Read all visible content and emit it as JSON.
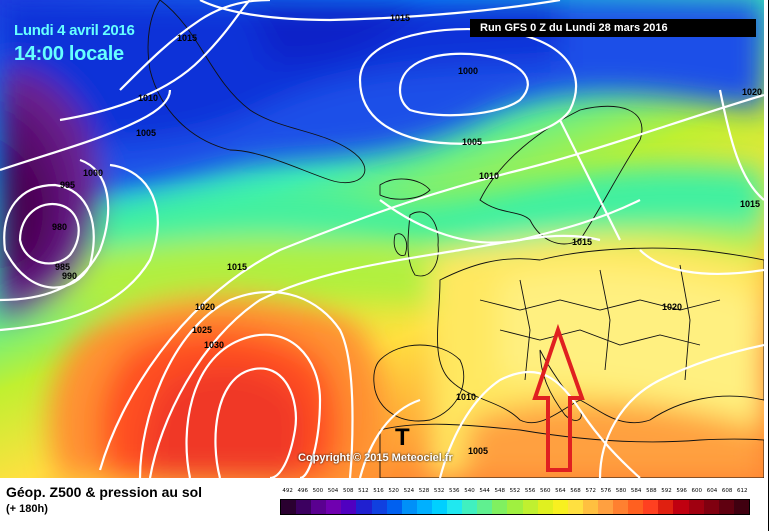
{
  "header": {
    "date": "Lundi 4 avril 2016",
    "time": "14:00 locale",
    "run": "Run GFS 0 Z du Lundi 28 mars 2016"
  },
  "copyright": "Copyright © 2015 Meteociel.fr",
  "legend": {
    "title": "Géop. Z500 & pression au sol",
    "subtitle": "(+ 180h)",
    "scale_values": [
      "492",
      "496",
      "500",
      "504",
      "508",
      "512",
      "516",
      "520",
      "524",
      "528",
      "532",
      "536",
      "540",
      "544",
      "548",
      "552",
      "556",
      "560",
      "564",
      "568",
      "572",
      "576",
      "580",
      "584",
      "588",
      "592",
      "596",
      "600",
      "604",
      "608",
      "612"
    ],
    "scale_colors": [
      "#2a0030",
      "#3c0060",
      "#5a0090",
      "#7000b0",
      "#5000c0",
      "#2020d0",
      "#1040e0",
      "#0060f0",
      "#0090f8",
      "#00b0ff",
      "#00d0ff",
      "#20e8f0",
      "#40f0c0",
      "#60f090",
      "#80f060",
      "#a0f040",
      "#c0f030",
      "#e0f020",
      "#f8f020",
      "#ffe040",
      "#ffc040",
      "#ffa040",
      "#ff8030",
      "#ff6020",
      "#ff4020",
      "#e02010",
      "#c00010",
      "#a00010",
      "#800010",
      "#600010",
      "#400010"
    ]
  },
  "isobars": [
    "1015",
    "1015",
    "1000",
    "1010",
    "1005",
    "1000",
    "995",
    "980",
    "985",
    "990",
    "1005",
    "1010",
    "1015",
    "1020",
    "1025",
    "1030",
    "1015",
    "1020",
    "1020",
    "1015",
    "1010",
    "1005"
  ],
  "marker": "T",
  "arrow_color": "#e02020"
}
